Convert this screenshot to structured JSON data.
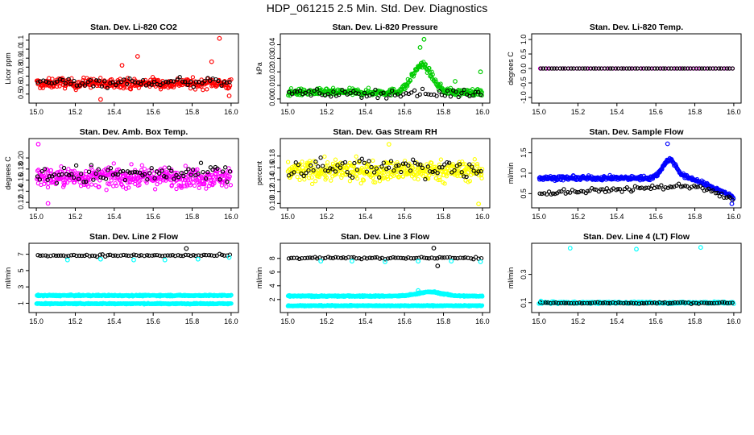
{
  "figure_title": "HDP_061215  2.5 Min. Std. Dev. Diagnostics",
  "colors": {
    "red": "#ff0000",
    "green": "#00cc00",
    "magenta": "#ff00ff",
    "yellow": "#ffff00",
    "blue": "#0000ff",
    "cyan": "#00ffff",
    "black": "#000000"
  },
  "chart_data": [
    {
      "type": "scatter",
      "title": "Stan. Dev. Li-820 CO2",
      "ylabel": "Licor ppm",
      "xlim": [
        15.0,
        16.0
      ],
      "ylim": [
        0.43,
        1.14
      ],
      "xticks": [
        "15.0",
        "15.2",
        "15.4",
        "15.6",
        "15.8",
        "16.0"
      ],
      "yticks": [
        "0.5",
        "0.6",
        "0.7",
        "0.8",
        "0.9",
        "1.0",
        "1.1"
      ],
      "series": [
        {
          "name": "primary",
          "color": "#ff0000",
          "n": 360,
          "base": 0.62,
          "noise": 0.055,
          "wave": 0.01
        },
        {
          "name": "secondary",
          "color": "#000000",
          "n": 70,
          "base": 0.63,
          "noise": 0.05,
          "wave": 0.01
        }
      ],
      "outliers": [
        {
          "x": 15.52,
          "y": 0.92,
          "color": "#ff0000"
        },
        {
          "x": 15.94,
          "y": 1.12,
          "color": "#ff0000"
        },
        {
          "x": 15.44,
          "y": 0.82,
          "color": "#ff0000"
        },
        {
          "x": 15.33,
          "y": 0.44,
          "color": "#ff0000"
        },
        {
          "x": 15.99,
          "y": 0.48,
          "color": "#ff0000"
        },
        {
          "x": 15.9,
          "y": 0.86,
          "color": "#ff0000"
        }
      ]
    },
    {
      "type": "scatter",
      "title": "Stan. Dev. Li-820 Pressure",
      "ylabel": "kPa",
      "xlim": [
        15.0,
        16.0
      ],
      "ylim": [
        -0.001,
        0.046
      ],
      "xticks": [
        "15.0",
        "15.2",
        "15.4",
        "15.6",
        "15.8",
        "16.0"
      ],
      "yticks": [
        "0.00",
        "0.01",
        "0.02",
        "0.03",
        "0.04"
      ],
      "series": [
        {
          "name": "primary",
          "color": "#00cc00",
          "n": 360,
          "base": 0.005,
          "noise": 0.0025,
          "peak": {
            "center": 15.69,
            "width": 0.07,
            "height": 0.02
          },
          "floor": 0.0
        },
        {
          "name": "secondary",
          "color": "#000000",
          "n": 70,
          "base": 0.004,
          "noise": 0.003,
          "floor": 0.0
        }
      ],
      "outliers": [
        {
          "x": 15.7,
          "y": 0.044,
          "color": "#00cc00"
        },
        {
          "x": 15.68,
          "y": 0.038,
          "color": "#00cc00"
        },
        {
          "x": 15.99,
          "y": 0.02,
          "color": "#00cc00"
        },
        {
          "x": 15.86,
          "y": 0.013,
          "color": "#00cc00"
        }
      ]
    },
    {
      "type": "scatter",
      "title": "Stan. Dev. Li-820 Temp.",
      "ylabel": "degrees C",
      "xlim": [
        15.0,
        16.0
      ],
      "ylim": [
        -1.1,
        1.1
      ],
      "xticks": [
        "15.0",
        "15.2",
        "15.4",
        "15.6",
        "15.8",
        "16.0"
      ],
      "yticks": [
        "-1.0",
        "-0.5",
        "0.0",
        "0.5",
        "1.0"
      ],
      "series": [
        {
          "name": "primary",
          "color": "#ff00ff",
          "n": 70,
          "base": 0.0,
          "noise": 0.0
        },
        {
          "name": "secondary",
          "color": "#000000",
          "n": 70,
          "base": 0.0,
          "noise": 0.0
        }
      ],
      "outliers": []
    },
    {
      "type": "scatter",
      "title": "Stan. Dev. Amb. Box Temp.",
      "ylabel": "degrees C",
      "xlim": [
        15.0,
        16.0
      ],
      "ylim": [
        0.115,
        0.23
      ],
      "xticks": [
        "15.0",
        "15.2",
        "15.4",
        "15.6",
        "15.8",
        "16.0"
      ],
      "yticks": [
        "0.12",
        "0.14",
        "0.16",
        "0.18",
        "0.20"
      ],
      "series": [
        {
          "name": "primary",
          "color": "#ff00ff",
          "n": 420,
          "base": 0.165,
          "noise": 0.017
        },
        {
          "name": "secondary",
          "color": "#000000",
          "n": 80,
          "base": 0.17,
          "noise": 0.017
        }
      ],
      "outliers": [
        {
          "x": 15.01,
          "y": 0.225,
          "color": "#ff00ff"
        },
        {
          "x": 15.06,
          "y": 0.118,
          "color": "#ff00ff"
        }
      ]
    },
    {
      "type": "scatter",
      "title": "Stan. Dev. Gas Stream RH",
      "ylabel": "percent",
      "xlim": [
        15.0,
        16.0
      ],
      "ylim": [
        0.097,
        0.205
      ],
      "xticks": [
        "15.0",
        "15.2",
        "15.4",
        "15.6",
        "15.8",
        "16.0"
      ],
      "yticks": [
        "0.10",
        "0.12",
        "0.14",
        "0.16",
        "0.18"
      ],
      "series": [
        {
          "name": "primary",
          "color": "#ffff00",
          "n": 420,
          "base": 0.155,
          "noise": 0.017
        },
        {
          "name": "secondary",
          "color": "#000000",
          "n": 80,
          "base": 0.16,
          "noise": 0.017
        }
      ],
      "outliers": [
        {
          "x": 15.98,
          "y": 0.099,
          "color": "#ffff00"
        },
        {
          "x": 15.52,
          "y": 0.2,
          "color": "#ffff00"
        }
      ]
    },
    {
      "type": "scatter",
      "title": "Stan. Dev. Sample Flow",
      "ylabel": "ml/min",
      "xlim": [
        15.0,
        16.0
      ],
      "ylim": [
        0.22,
        1.78
      ],
      "xticks": [
        "15.0",
        "15.2",
        "15.4",
        "15.6",
        "15.8",
        "16.0"
      ],
      "yticks": [
        "0.5",
        "1.0",
        "1.5"
      ],
      "series": [
        {
          "name": "primary",
          "color": "#0000ff",
          "n": 420,
          "base": 0.88,
          "noise": 0.05,
          "peak": {
            "center": 15.67,
            "width": 0.05,
            "height": 0.45
          },
          "decline": {
            "start": 15.78,
            "end": 16.0,
            "to": 0.42
          }
        },
        {
          "name": "secondary",
          "color": "#000000",
          "n": 90,
          "base": 0.55,
          "noise": 0.06,
          "trend": [
            0.5,
            0.75
          ],
          "decline": {
            "start": 15.8,
            "end": 16.0,
            "to": 0.33
          }
        }
      ],
      "outliers": [
        {
          "x": 15.66,
          "y": 1.72,
          "color": "#0000ff"
        },
        {
          "x": 15.99,
          "y": 0.25,
          "color": "#0000ff"
        }
      ]
    },
    {
      "type": "scatter",
      "title": "Stan. Dev. Line 2 Flow",
      "ylabel": "ml/min",
      "xlim": [
        15.0,
        16.0
      ],
      "ylim": [
        0.2,
        8.0
      ],
      "xticks": [
        "15.0",
        "15.2",
        "15.4",
        "15.6",
        "15.8",
        "16.0"
      ],
      "yticks": [
        "1",
        "3",
        "5",
        "7"
      ],
      "series": [
        {
          "name": "cyan-upper",
          "color": "#00ffff",
          "n": 500,
          "base": 1.95,
          "noise": 0.08
        },
        {
          "name": "cyan-lower",
          "color": "#00ffff",
          "n": 500,
          "base": 0.95,
          "noise": 0.06
        },
        {
          "name": "black",
          "color": "#000000",
          "n": 75,
          "base": 6.85,
          "noise": 0.12
        }
      ],
      "outliers": [
        {
          "x": 15.16,
          "y": 6.3,
          "color": "#00ffff"
        },
        {
          "x": 15.33,
          "y": 6.4,
          "color": "#00ffff"
        },
        {
          "x": 15.5,
          "y": 6.3,
          "color": "#00ffff"
        },
        {
          "x": 15.66,
          "y": 6.3,
          "color": "#00ffff"
        },
        {
          "x": 15.83,
          "y": 6.4,
          "color": "#00ffff"
        },
        {
          "x": 15.99,
          "y": 6.6,
          "color": "#00ffff"
        },
        {
          "x": 15.77,
          "y": 7.7,
          "color": "#000000"
        }
      ]
    },
    {
      "type": "scatter",
      "title": "Stan. Dev. Line 3 Flow",
      "ylabel": "ml/min",
      "xlim": [
        15.0,
        16.0
      ],
      "ylim": [
        0.5,
        9.8
      ],
      "xticks": [
        "15.0",
        "15.2",
        "15.4",
        "15.6",
        "15.8",
        "16.0"
      ],
      "yticks": [
        "2",
        "4",
        "6",
        "8"
      ],
      "series": [
        {
          "name": "cyan-upper",
          "color": "#00ffff",
          "n": 500,
          "base": 2.5,
          "noise": 0.1,
          "peak": {
            "center": 15.73,
            "width": 0.09,
            "height": 0.6
          }
        },
        {
          "name": "cyan-lower",
          "color": "#00ffff",
          "n": 500,
          "base": 1.1,
          "noise": 0.07
        },
        {
          "name": "black",
          "color": "#000000",
          "n": 75,
          "base": 8.05,
          "noise": 0.15
        }
      ],
      "outliers": [
        {
          "x": 15.17,
          "y": 7.6,
          "color": "#00ffff"
        },
        {
          "x": 15.33,
          "y": 7.6,
          "color": "#00ffff"
        },
        {
          "x": 15.5,
          "y": 7.5,
          "color": "#00ffff"
        },
        {
          "x": 15.67,
          "y": 7.6,
          "color": "#00ffff"
        },
        {
          "x": 15.84,
          "y": 7.6,
          "color": "#00ffff"
        },
        {
          "x": 15.99,
          "y": 7.5,
          "color": "#00ffff"
        },
        {
          "x": 15.75,
          "y": 9.5,
          "color": "#000000"
        },
        {
          "x": 15.77,
          "y": 6.9,
          "color": "#000000"
        },
        {
          "x": 15.67,
          "y": 3.3,
          "color": "#00ffff"
        }
      ]
    },
    {
      "type": "scatter",
      "title": "Stan. Dev. Line 4 (LT) Flow",
      "ylabel": "ml/min",
      "xlim": [
        15.0,
        16.0
      ],
      "ylim": [
        0.05,
        0.5
      ],
      "xticks": [
        "15.0",
        "15.2",
        "15.4",
        "15.6",
        "15.8",
        "16.0"
      ],
      "yticks": [
        "0.1",
        "0.3"
      ],
      "series": [
        {
          "name": "cyan",
          "color": "#00ffff",
          "n": 420,
          "base": 0.1,
          "noise": 0.007
        },
        {
          "name": "black",
          "color": "#000000",
          "n": 75,
          "base": 0.098,
          "noise": 0.005
        }
      ],
      "outliers": [
        {
          "x": 15.16,
          "y": 0.485,
          "color": "#00ffff"
        },
        {
          "x": 15.5,
          "y": 0.478,
          "color": "#00ffff"
        },
        {
          "x": 15.83,
          "y": 0.49,
          "color": "#00ffff"
        },
        {
          "x": 15.01,
          "y": 0.112,
          "color": "#00ffff"
        }
      ]
    }
  ]
}
